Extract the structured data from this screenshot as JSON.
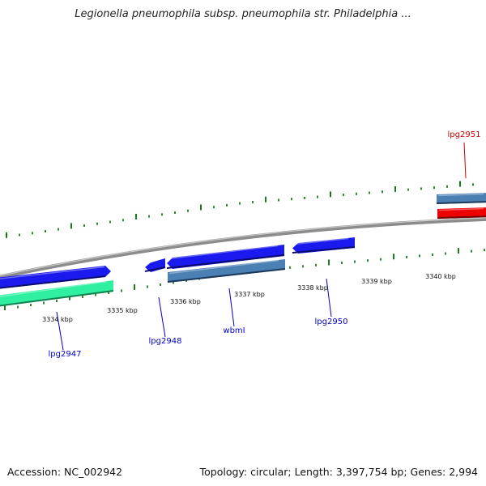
{
  "title": "Legionella pneumophila subsp. pneumophila str. Philadelphia ...",
  "footer": {
    "accession": "Accession: NC_002942",
    "summary": "Topology: circular; Length: 3,397,754 bp; Genes: 2,994"
  },
  "scale_labels": [
    "3334 kbp",
    "3335 kbp",
    "3336 kbp",
    "3337 kbp",
    "3338 kbp",
    "3339 kbp",
    "3340 kbp"
  ],
  "gene_labels": [
    {
      "name": "lpg2947",
      "color": "#0000cc"
    },
    {
      "name": "lpg2948",
      "color": "#0000cc"
    },
    {
      "name": "wbmI",
      "color": "#0000cc"
    },
    {
      "name": "lpg2950",
      "color": "#0000cc"
    },
    {
      "name": "lpg2951",
      "color": "#cc0000"
    }
  ],
  "colors": {
    "forward_strand": "#1a1aee",
    "steelblue": "#4a80b4",
    "aquamarine": "#2ef0a0",
    "red": "#ee0000",
    "tick": "#1a7a1a",
    "backbone": "#8a8a8a"
  }
}
